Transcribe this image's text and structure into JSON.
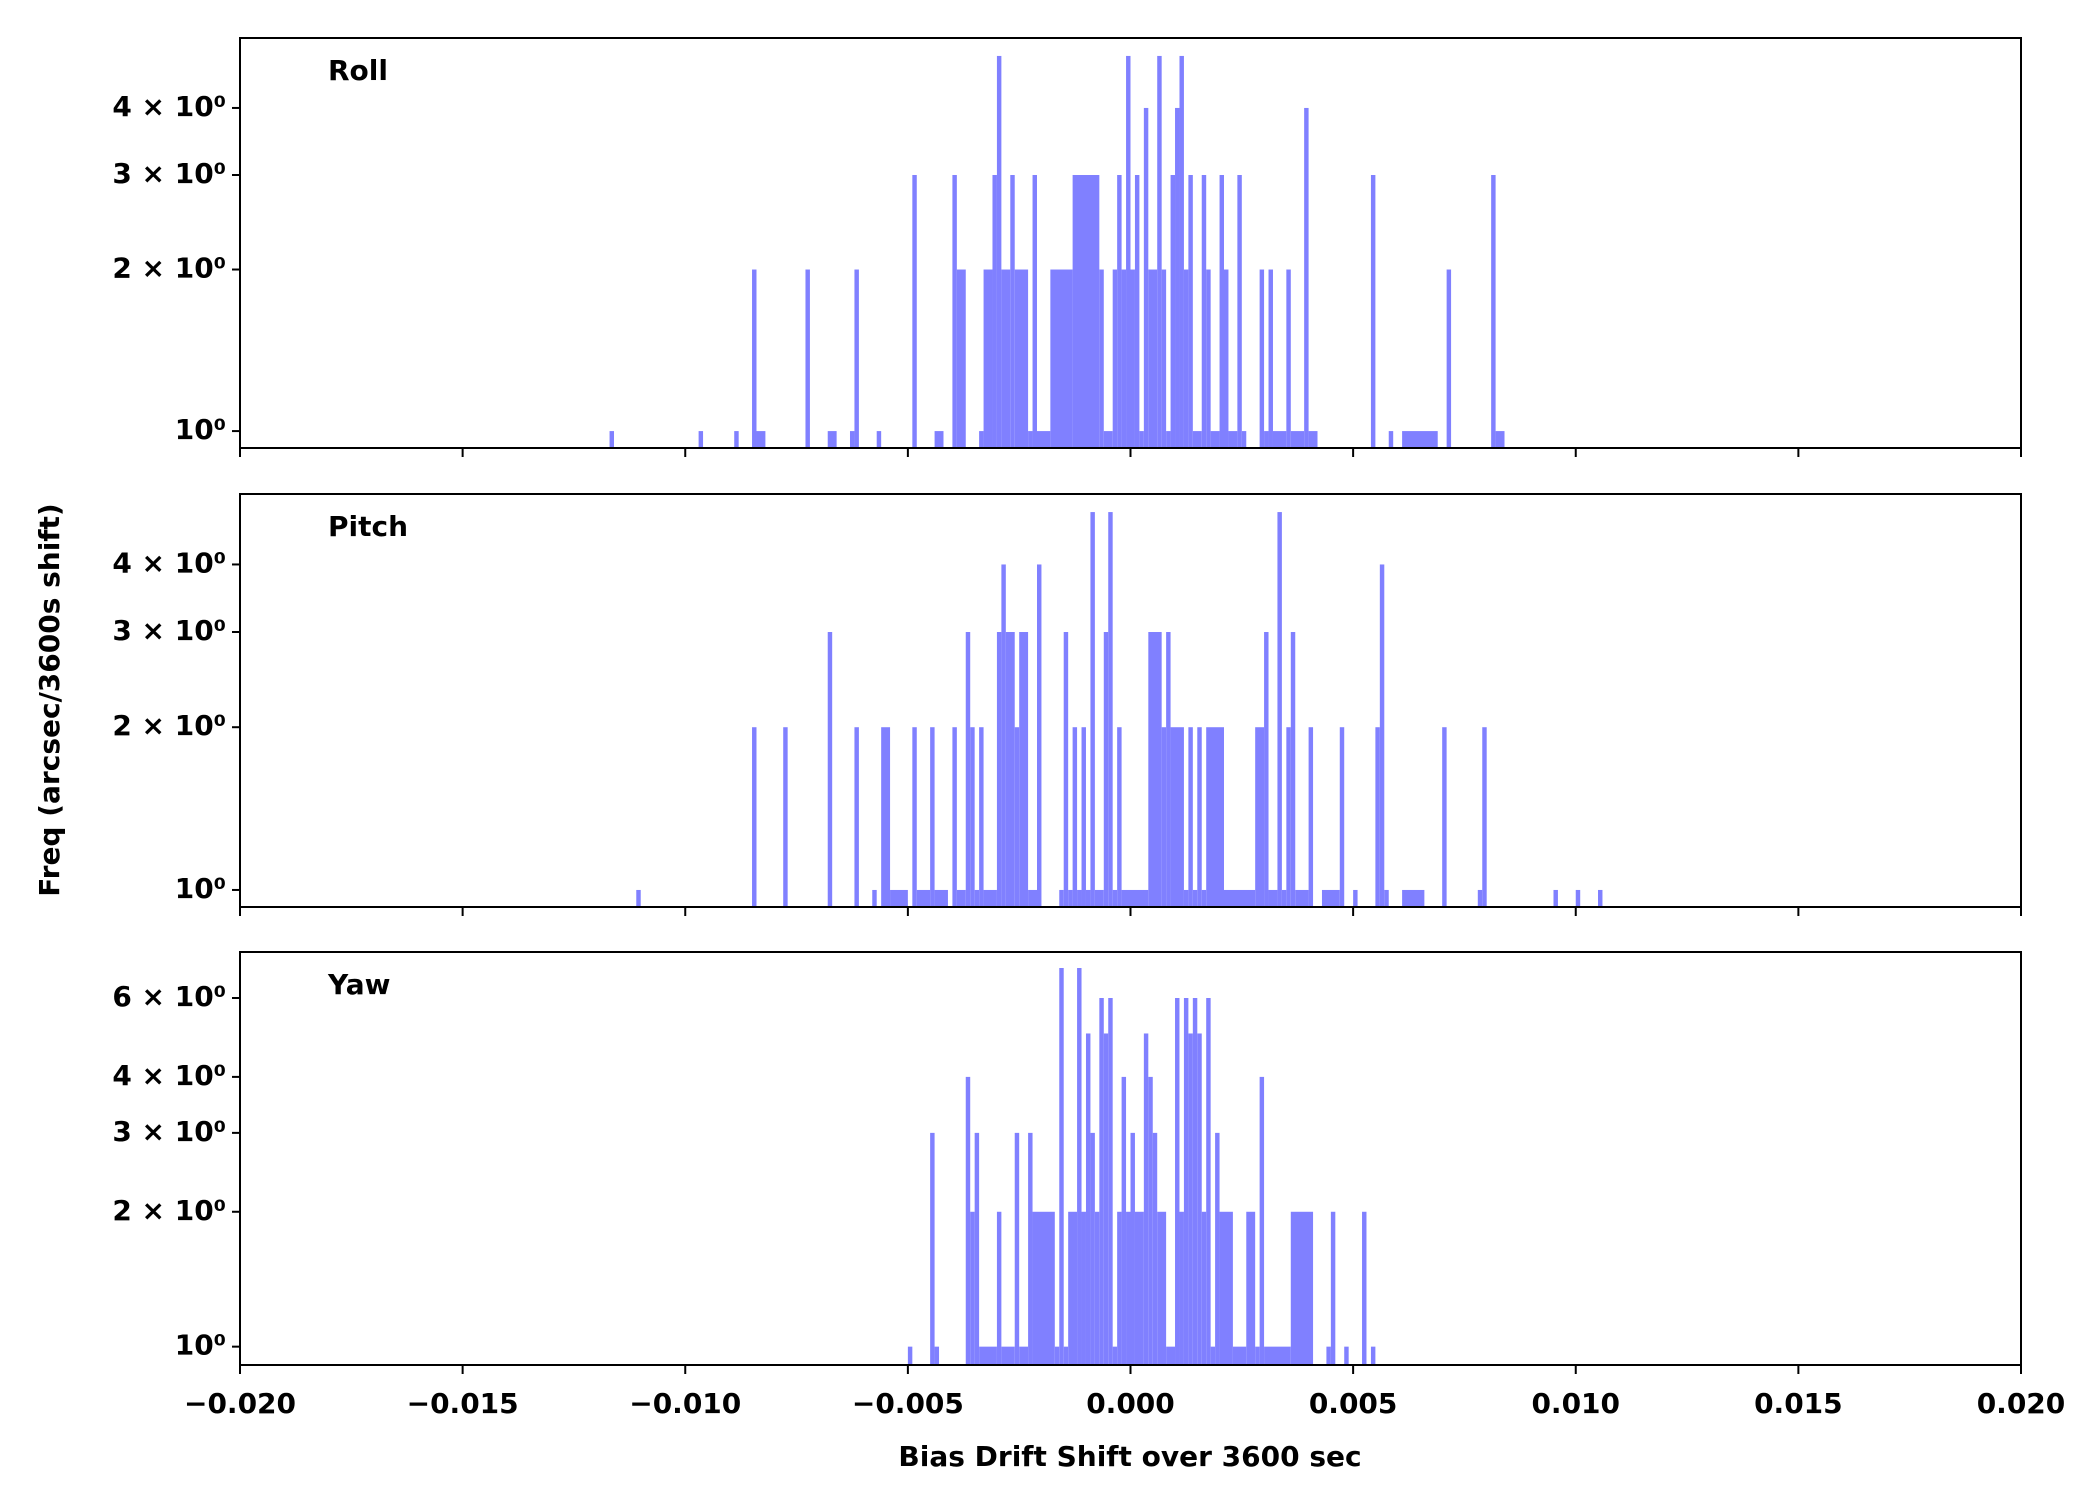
{
  "xlabel": "Bias Drift Shift over 3600 sec",
  "ylabel": "Freq (arcsec/3600s shift)",
  "chart_data": [
    {
      "type": "histogram",
      "title": "Roll",
      "color": "#8080ff",
      "yscale": "log",
      "xlim": [
        -0.02,
        0.02
      ],
      "ylim": [
        0.93,
        5.4
      ],
      "yticks": [
        {
          "value": 1,
          "label": "10⁰"
        },
        {
          "value": 2,
          "label": "2 × 10⁰"
        },
        {
          "value": 3,
          "label": "3 × 10⁰"
        },
        {
          "value": 4,
          "label": "4 × 10⁰"
        }
      ],
      "bins": [
        -0.0117,
        -0.0116,
        -0.0097,
        -0.0096,
        -0.0089,
        -0.0088,
        -0.0085,
        -0.0084,
        -0.0082,
        -0.0073,
        -0.0072,
        -0.0068,
        -0.0066,
        -0.0063,
        -0.0062,
        -0.0061,
        -0.0057,
        -0.0056,
        -0.0049,
        -0.0048,
        -0.0044,
        -0.0042,
        -0.004,
        -0.0039,
        -0.0037,
        -0.0034,
        -0.0033,
        -0.0031,
        -0.003,
        -0.0029,
        -0.0027,
        -0.0026,
        -0.0023,
        -0.0022,
        -0.0021,
        -0.0018,
        -0.0013,
        -0.0007,
        -0.0006,
        -0.0004,
        -0.0003,
        -0.0002,
        -0.0001,
        0,
        0.0001,
        0.0002,
        0.0003,
        0.0004,
        0.0006,
        0.0007,
        0.0008,
        0.0009,
        0.001,
        0.0011,
        0.0012,
        0.0013,
        0.0014,
        0.0016,
        0.0017,
        0.0018,
        0.002,
        0.0021,
        0.0022,
        0.0024,
        0.0025,
        0.0026,
        0.0029,
        0.003,
        0.0031,
        0.0032,
        0.0035,
        0.0036,
        0.0039,
        0.004,
        0.0042,
        0.0054,
        0.0055,
        0.0058,
        0.0059,
        0.0061,
        0.0069,
        0.0071,
        0.0072,
        0.0081,
        0.0082,
        0.0084
      ],
      "values": [
        1,
        0,
        1,
        0,
        1,
        0,
        2,
        1,
        0,
        2,
        0,
        1,
        0,
        1,
        2,
        0,
        1,
        0,
        3,
        0,
        1,
        0,
        3,
        2,
        0,
        1,
        2,
        3,
        5,
        2,
        3,
        2,
        1,
        3,
        1,
        2,
        3,
        2,
        1,
        2,
        3,
        2,
        5,
        2,
        3,
        1,
        4,
        2,
        5,
        2,
        1,
        3,
        4,
        5,
        2,
        3,
        1,
        3,
        2,
        1,
        3,
        2,
        1,
        3,
        1,
        0,
        2,
        1,
        2,
        1,
        2,
        1,
        4,
        1,
        0,
        3,
        0,
        1,
        0,
        1,
        0,
        2,
        0,
        3,
        1
      ]
    },
    {
      "type": "histogram",
      "title": "Pitch",
      "color": "#8080ff",
      "yscale": "log",
      "xlim": [
        -0.02,
        0.02
      ],
      "ylim": [
        0.93,
        5.4
      ],
      "yticks": [
        {
          "value": 1,
          "label": "10⁰"
        },
        {
          "value": 2,
          "label": "2 × 10⁰"
        },
        {
          "value": 3,
          "label": "3 × 10⁰"
        },
        {
          "value": 4,
          "label": "4 × 10⁰"
        }
      ],
      "bins": [
        -0.0111,
        -0.011,
        -0.0085,
        -0.0084,
        -0.0078,
        -0.0077,
        -0.0068,
        -0.0067,
        -0.0062,
        -0.0061,
        -0.0058,
        -0.0057,
        -0.0056,
        -0.0054,
        -0.005,
        -0.0049,
        -0.0048,
        -0.0045,
        -0.0044,
        -0.0041,
        -0.004,
        -0.0039,
        -0.0037,
        -0.0036,
        -0.0035,
        -0.0034,
        -0.0033,
        -0.003,
        -0.0029,
        -0.0028,
        -0.0026,
        -0.0025,
        -0.0023,
        -0.0021,
        -0.002,
        -0.0016,
        -0.0015,
        -0.0014,
        -0.0013,
        -0.0012,
        -0.0011,
        -0.001,
        -0.0009,
        -0.0008,
        -0.0006,
        -0.0005,
        -0.0004,
        -0.0003,
        -0.0002,
        0.0004,
        0.0007,
        0.0008,
        0.0009,
        0.0012,
        0.0013,
        0.0014,
        0.0015,
        0.0016,
        0.0017,
        0.0021,
        0.0028,
        0.003,
        0.0031,
        0.0033,
        0.0034,
        0.0035,
        0.0036,
        0.0037,
        0.004,
        0.0041,
        0.0043,
        0.0047,
        0.0048,
        0.005,
        0.0051,
        0.0055,
        0.0056,
        0.0057,
        0.0058,
        0.0061,
        0.0066,
        0.007,
        0.0071,
        0.0078,
        0.0079,
        0.008,
        0.0095,
        0.0096,
        0.01,
        0.0101,
        0.0105,
        0.0106
      ],
      "values": [
        1,
        0,
        2,
        0,
        2,
        0,
        3,
        0,
        2,
        0,
        1,
        0,
        2,
        1,
        0,
        2,
        1,
        2,
        1,
        0,
        2,
        1,
        3,
        2,
        1,
        2,
        1,
        3,
        4,
        3,
        2,
        3,
        1,
        4,
        0,
        1,
        3,
        1,
        2,
        1,
        2,
        1,
        5,
        1,
        3,
        5,
        1,
        2,
        1,
        3,
        2,
        3,
        2,
        1,
        2,
        1,
        2,
        1,
        2,
        1,
        2,
        3,
        1,
        5,
        1,
        2,
        3,
        1,
        2,
        0,
        1,
        2,
        0,
        1,
        0,
        2,
        4,
        1,
        0,
        1,
        0,
        2,
        0,
        1,
        2,
        0,
        1,
        0,
        1,
        0,
        1
      ]
    },
    {
      "type": "histogram",
      "title": "Yaw",
      "color": "#8080ff",
      "yscale": "log",
      "xlim": [
        -0.02,
        0.02
      ],
      "ylim": [
        0.91,
        7.6
      ],
      "yticks": [
        {
          "value": 1,
          "label": "10⁰"
        },
        {
          "value": 2,
          "label": "2 × 10⁰"
        },
        {
          "value": 3,
          "label": "3 × 10⁰"
        },
        {
          "value": 4,
          "label": "4 × 10⁰"
        },
        {
          "value": 6,
          "label": "6 × 10⁰"
        }
      ],
      "xticks": [
        {
          "value": -0.02,
          "label": "−0.020"
        },
        {
          "value": -0.015,
          "label": "−0.015"
        },
        {
          "value": -0.01,
          "label": "−0.010"
        },
        {
          "value": -0.005,
          "label": "−0.005"
        },
        {
          "value": 0,
          "label": "0.000"
        },
        {
          "value": 0.005,
          "label": "0.005"
        },
        {
          "value": 0.01,
          "label": "0.010"
        },
        {
          "value": 0.015,
          "label": "0.015"
        },
        {
          "value": 0.02,
          "label": "0.020"
        }
      ],
      "bins": [
        -0.005,
        -0.0049,
        -0.0045,
        -0.0044,
        -0.0043,
        -0.0037,
        -0.0036,
        -0.0035,
        -0.0034,
        -0.003,
        -0.0029,
        -0.0026,
        -0.0025,
        -0.0023,
        -0.0022,
        -0.0017,
        -0.0016,
        -0.0015,
        -0.0014,
        -0.0012,
        -0.0011,
        -0.001,
        -0.0009,
        -0.0008,
        -0.0007,
        -0.0006,
        -0.0005,
        -0.0004,
        -0.0003,
        -0.0002,
        -0.0001,
        0,
        0.0001,
        0.0003,
        0.0004,
        0.0005,
        0.0006,
        0.0008,
        0.001,
        0.0011,
        0.0012,
        0.0013,
        0.0014,
        0.0015,
        0.0016,
        0.0017,
        0.0018,
        0.0019,
        0.002,
        0.0023,
        0.0026,
        0.0028,
        0.0029,
        0.003,
        0.0036,
        0.0041,
        0.0044,
        0.0045,
        0.0046,
        0.0048,
        0.0049,
        0.0052,
        0.0053,
        0.0054,
        0.0055
      ],
      "values": [
        1,
        0,
        3,
        1,
        0,
        4,
        2,
        3,
        1,
        2,
        1,
        3,
        1,
        3,
        2,
        1,
        7,
        1,
        2,
        7,
        2,
        5,
        3,
        2,
        6,
        5,
        6,
        1,
        2,
        4,
        2,
        3,
        2,
        5,
        4,
        3,
        2,
        1,
        6,
        2,
        6,
        5,
        6,
        5,
        2,
        6,
        1,
        3,
        2,
        1,
        2,
        1,
        4,
        1,
        2,
        0,
        1,
        2,
        0,
        1,
        0,
        2,
        0,
        1
      ]
    }
  ]
}
